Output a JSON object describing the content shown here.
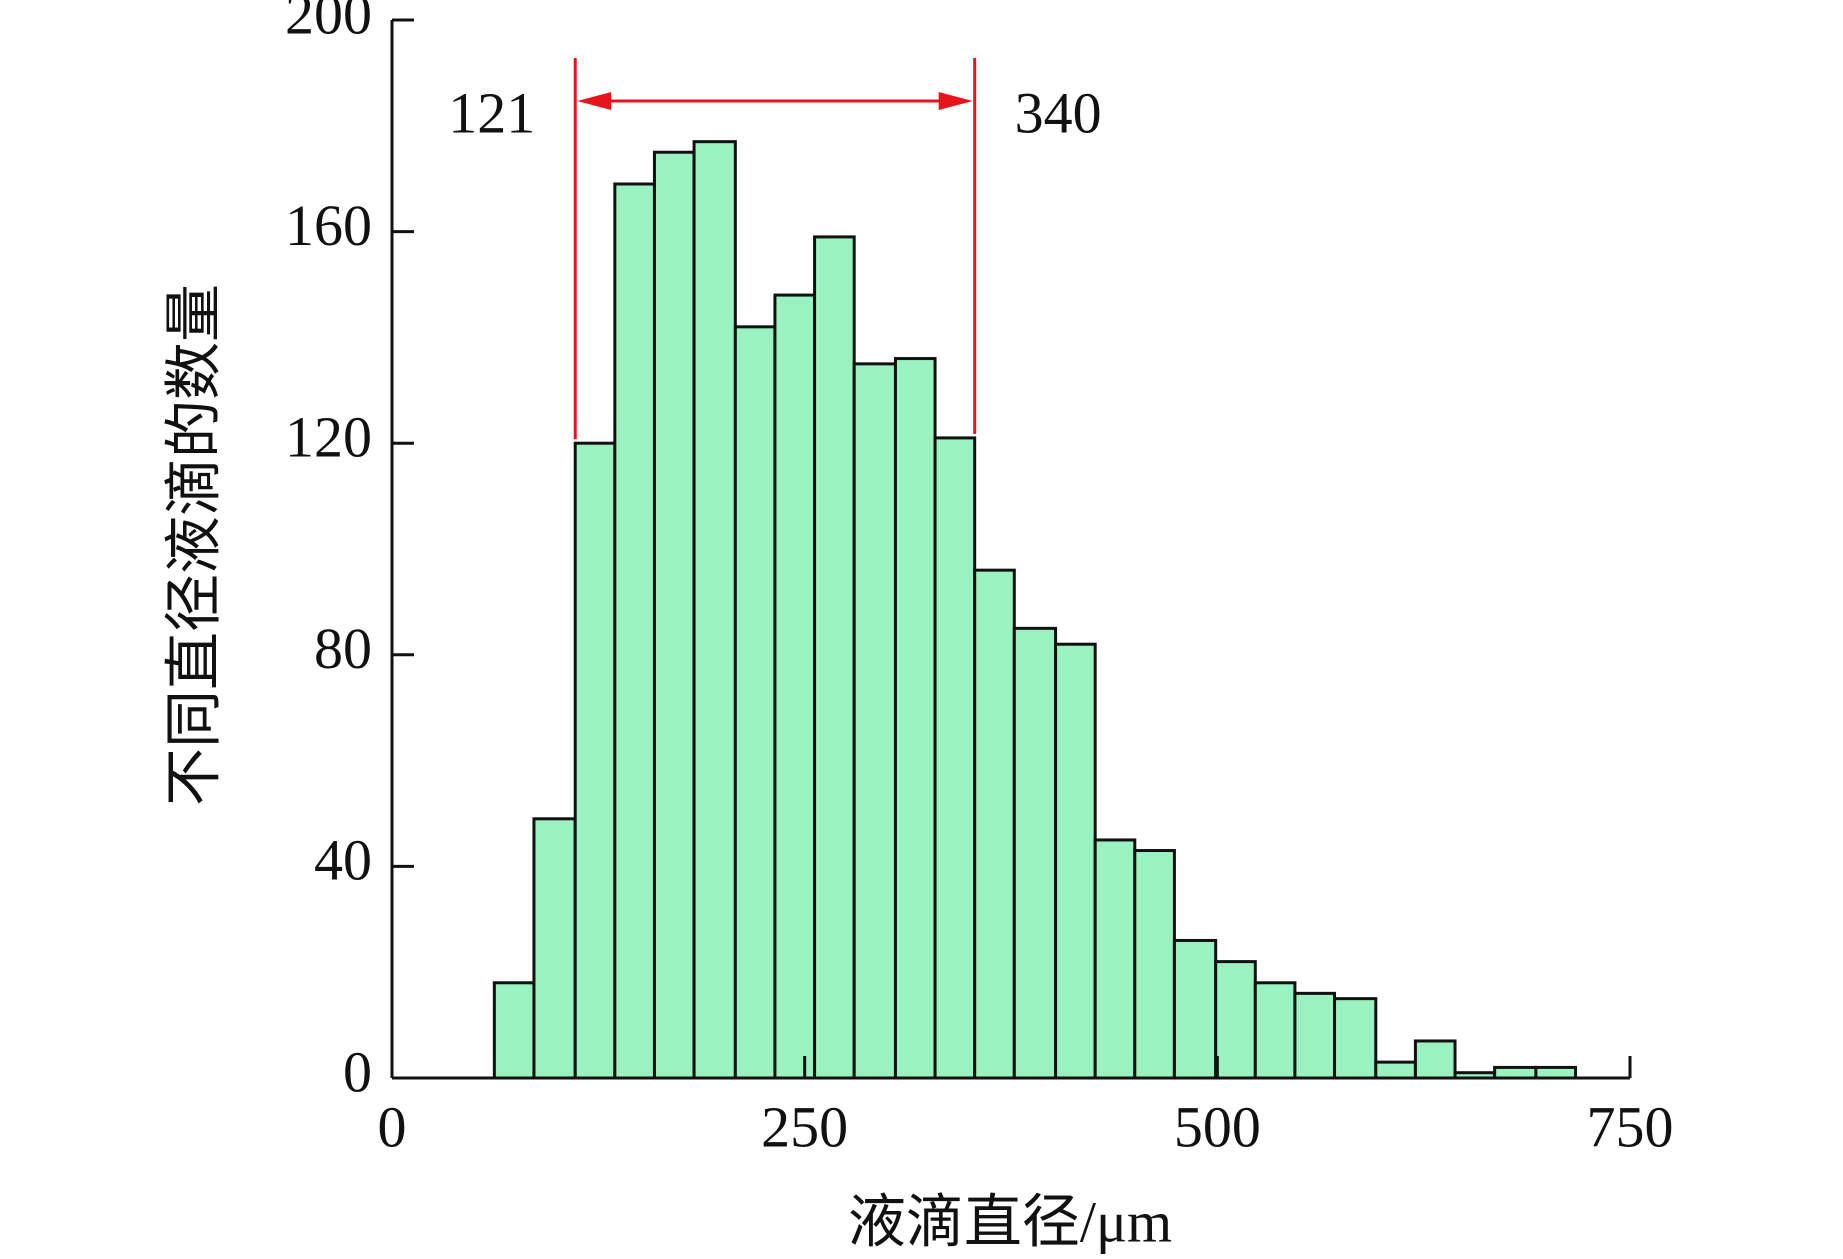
{
  "chart_data": {
    "type": "histogram",
    "xlabel": "液滴直径/μm",
    "ylabel": "不同直径液滴的数量",
    "bins": [
      62,
      86,
      111,
      135,
      159,
      183,
      208,
      232,
      256,
      280,
      305,
      329,
      353,
      377,
      402,
      426,
      450,
      474,
      499,
      523,
      547,
      571,
      596,
      620,
      644,
      668,
      693,
      717
    ],
    "values": [
      18,
      49,
      120,
      169,
      175,
      177,
      142,
      148,
      159,
      135,
      136,
      121,
      96,
      85,
      82,
      45,
      43,
      26,
      22,
      18,
      16,
      15,
      3,
      7,
      1,
      2,
      2
    ],
    "color": "#9af2c0",
    "xlim": [
      0,
      750
    ],
    "xticks": [
      0,
      250,
      500,
      750
    ],
    "ylim": [
      0,
      200
    ],
    "yticks": [
      0,
      40,
      80,
      120,
      160,
      200
    ],
    "annotations": [
      "121",
      "340"
    ],
    "annotation_color": "#e8141c"
  }
}
